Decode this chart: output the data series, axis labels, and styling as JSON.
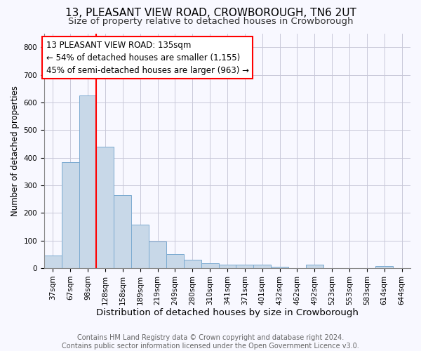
{
  "title": "13, PLEASANT VIEW ROAD, CROWBOROUGH, TN6 2UT",
  "subtitle": "Size of property relative to detached houses in Crowborough",
  "xlabel": "Distribution of detached houses by size in Crowborough",
  "ylabel": "Number of detached properties",
  "categories": [
    "37sqm",
    "67sqm",
    "98sqm",
    "128sqm",
    "158sqm",
    "189sqm",
    "219sqm",
    "249sqm",
    "280sqm",
    "310sqm",
    "341sqm",
    "371sqm",
    "401sqm",
    "432sqm",
    "462sqm",
    "492sqm",
    "523sqm",
    "553sqm",
    "583sqm",
    "614sqm",
    "644sqm"
  ],
  "values": [
    47,
    383,
    625,
    441,
    265,
    157,
    98,
    52,
    30,
    18,
    12,
    13,
    12,
    5,
    0,
    12,
    0,
    0,
    0,
    7,
    0
  ],
  "bar_color": "#c8d8e8",
  "bar_edge_color": "#7aaad0",
  "red_line_index": 3,
  "annotation_line1": "13 PLEASANT VIEW ROAD: 135sqm",
  "annotation_line2": "← 54% of detached houses are smaller (1,155)",
  "annotation_line3": "45% of semi-detached houses are larger (963) →",
  "ylim": [
    0,
    850
  ],
  "yticks": [
    0,
    100,
    200,
    300,
    400,
    500,
    600,
    700,
    800
  ],
  "footer_line1": "Contains HM Land Registry data © Crown copyright and database right 2024.",
  "footer_line2": "Contains public sector information licensed under the Open Government Licence v3.0.",
  "bg_color": "#f8f8ff",
  "grid_color": "#c8c8d8",
  "title_fontsize": 11,
  "subtitle_fontsize": 9.5,
  "xlabel_fontsize": 9.5,
  "ylabel_fontsize": 8.5,
  "tick_fontsize": 7.5,
  "annot_fontsize": 8.5,
  "footer_fontsize": 7
}
